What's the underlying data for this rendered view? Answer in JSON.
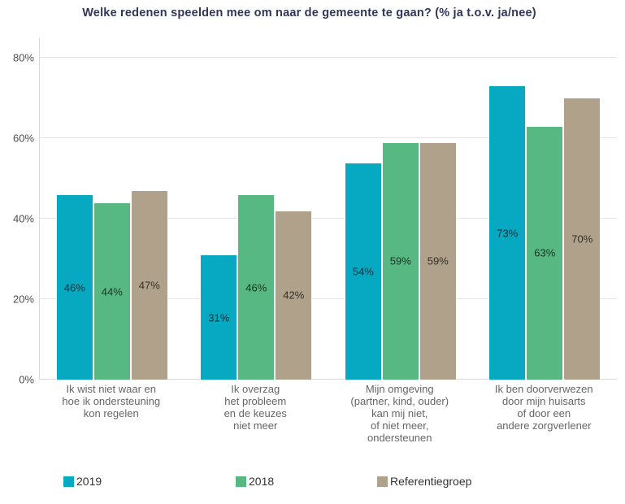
{
  "chart_data": {
    "type": "bar",
    "title": "Welke redenen speelden mee om naar de gemeente te gaan? (% ja t.o.v. ja/nee)",
    "categories": [
      "Ik wist niet waar en\nhoe ik ondersteuning\nkon regelen",
      "Ik overzag\nhet probleem\nen de keuzes\nniet meer",
      "Mijn omgeving\n(partner, kind, ouder)\nkan mij niet,\nof niet meer,\nondersteunen",
      "Ik ben doorverwezen\ndoor mijn huisarts\nof door een\nandere zorgverlener"
    ],
    "series": [
      {
        "name": "2019",
        "color": "#06a9c1",
        "values": [
          46,
          31,
          54,
          73
        ]
      },
      {
        "name": "2018",
        "color": "#57b981",
        "values": [
          44,
          46,
          59,
          63
        ]
      },
      {
        "name": "Referentiegroep",
        "color": "#b0a28a",
        "values": [
          47,
          42,
          59,
          70
        ]
      }
    ],
    "unit": "%",
    "xlabel": "",
    "ylabel": "",
    "y_ticks": [
      "0%",
      "20%",
      "40%",
      "60%",
      "80%"
    ],
    "ylim": [
      0,
      85
    ],
    "grid": true,
    "legend_position": "bottom",
    "colors": {
      "title_text": "#31355a",
      "axis_line": "#d9d9d9",
      "gridline": "#e5e5e5",
      "tick_text": "#4d4d4d",
      "category_text": "#666666",
      "legend_text": "#333333",
      "background": "#ffffff"
    }
  }
}
